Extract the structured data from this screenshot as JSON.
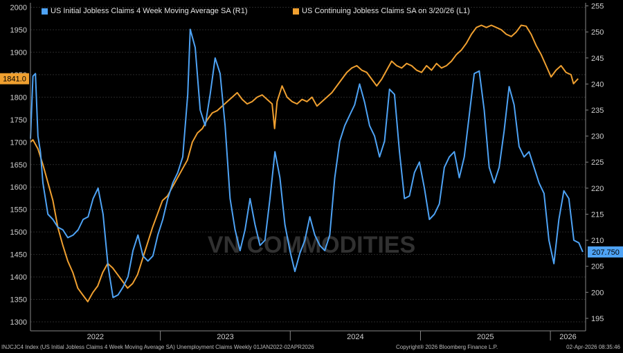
{
  "chart_data": {
    "type": "line",
    "xlabel": "",
    "x_tick_labels": [
      "2022",
      "2023",
      "2024",
      "2025",
      "2026"
    ],
    "left_axis": {
      "label": "",
      "ylim": [
        1280,
        2010
      ],
      "ticks": [
        1300,
        1350,
        1400,
        1450,
        1500,
        1550,
        1600,
        1650,
        1700,
        1750,
        1800,
        1850,
        1900,
        1950,
        2000
      ]
    },
    "right_axis": {
      "label": "",
      "ylim": [
        192.6,
        255.6
      ],
      "ticks": [
        195,
        200,
        205,
        210,
        215,
        220,
        225,
        230,
        235,
        240,
        245,
        250,
        255
      ]
    },
    "grid": true,
    "legend_position": "top-left",
    "series": [
      {
        "name": "US Initial Jobless Claims 4 Week Moving Average SA (R1)",
        "axis": "right",
        "color": "#4ea3f5",
        "last_value_label": "207.750",
        "points": [
          [
            "2022-01-01",
            229.5
          ],
          [
            "2022-01-08",
            241.5
          ],
          [
            "2022-01-15",
            242.0
          ],
          [
            "2022-01-22",
            230.0
          ],
          [
            "2022-01-29",
            227.0
          ],
          [
            "2022-02-05",
            221.0
          ],
          [
            "2022-02-12",
            218.0
          ],
          [
            "2022-02-19",
            215.0
          ],
          [
            "2022-03-05",
            214.0
          ],
          [
            "2022-03-19",
            212.5
          ],
          [
            "2022-04-02",
            212.0
          ],
          [
            "2022-04-16",
            210.5
          ],
          [
            "2022-05-01",
            211.0
          ],
          [
            "2022-05-15",
            212.0
          ],
          [
            "2022-05-29",
            214.0
          ],
          [
            "2022-06-12",
            214.5
          ],
          [
            "2022-06-26",
            218.0
          ],
          [
            "2022-07-10",
            220.0
          ],
          [
            "2022-07-24",
            215.0
          ],
          [
            "2022-08-07",
            205.0
          ],
          [
            "2022-08-21",
            199.0
          ],
          [
            "2022-09-04",
            199.5
          ],
          [
            "2022-09-18",
            201.0
          ],
          [
            "2022-10-02",
            203.0
          ],
          [
            "2022-10-16",
            208.0
          ],
          [
            "2022-10-30",
            211.0
          ],
          [
            "2022-11-13",
            207.0
          ],
          [
            "2022-11-27",
            206.0
          ],
          [
            "2022-12-11",
            207.0
          ],
          [
            "2022-12-25",
            211.0
          ],
          [
            "2023-01-08",
            214.0
          ],
          [
            "2023-01-22",
            218.0
          ],
          [
            "2023-02-05",
            221.0
          ],
          [
            "2023-02-19",
            223.0
          ],
          [
            "2023-03-05",
            226.0
          ],
          [
            "2023-03-19",
            238.0
          ],
          [
            "2023-03-26",
            250.5
          ],
          [
            "2023-04-09",
            247.0
          ],
          [
            "2023-04-23",
            235.0
          ],
          [
            "2023-05-07",
            232.0
          ],
          [
            "2023-05-21",
            238.0
          ],
          [
            "2023-06-04",
            245.0
          ],
          [
            "2023-06-18",
            242.0
          ],
          [
            "2023-07-02",
            232.0
          ],
          [
            "2023-07-16",
            218.0
          ],
          [
            "2023-07-30",
            212.0
          ],
          [
            "2023-08-13",
            208.0
          ],
          [
            "2023-08-27",
            212.0
          ],
          [
            "2023-09-10",
            218.0
          ],
          [
            "2023-09-24",
            213.0
          ],
          [
            "2023-10-08",
            209.0
          ],
          [
            "2023-10-22",
            210.0
          ],
          [
            "2023-11-05",
            218.0
          ],
          [
            "2023-11-19",
            227.0
          ],
          [
            "2023-12-03",
            222.0
          ],
          [
            "2023-12-17",
            213.0
          ],
          [
            "2023-12-31",
            208.0
          ],
          [
            "2024-01-14",
            204.0
          ],
          [
            "2024-01-28",
            207.5
          ],
          [
            "2024-02-11",
            210.0
          ],
          [
            "2024-02-25",
            214.5
          ],
          [
            "2024-03-10",
            211.0
          ],
          [
            "2024-03-24",
            209.0
          ],
          [
            "2024-04-07",
            208.0
          ],
          [
            "2024-04-21",
            211.0
          ],
          [
            "2024-05-05",
            222.0
          ],
          [
            "2024-05-19",
            229.0
          ],
          [
            "2024-06-02",
            232.0
          ],
          [
            "2024-06-16",
            234.0
          ],
          [
            "2024-06-30",
            236.0
          ],
          [
            "2024-07-14",
            240.0
          ],
          [
            "2024-07-28",
            236.5
          ],
          [
            "2024-08-11",
            232.0
          ],
          [
            "2024-08-25",
            230.0
          ],
          [
            "2024-09-08",
            226.0
          ],
          [
            "2024-09-22",
            229.0
          ],
          [
            "2024-10-06",
            239.0
          ],
          [
            "2024-10-20",
            238.0
          ],
          [
            "2024-11-03",
            227.0
          ],
          [
            "2024-11-17",
            218.0
          ],
          [
            "2024-12-01",
            218.5
          ],
          [
            "2024-12-15",
            223.0
          ],
          [
            "2024-12-29",
            225.0
          ],
          [
            "2025-01-12",
            220.0
          ],
          [
            "2025-01-26",
            214.0
          ],
          [
            "2025-02-09",
            215.0
          ],
          [
            "2025-02-23",
            217.0
          ],
          [
            "2025-03-09",
            224.0
          ],
          [
            "2025-03-23",
            226.0
          ],
          [
            "2025-04-06",
            227.0
          ],
          [
            "2025-04-20",
            222.0
          ],
          [
            "2025-05-04",
            226.0
          ],
          [
            "2025-05-18",
            234.0
          ],
          [
            "2025-06-01",
            242.0
          ],
          [
            "2025-06-15",
            242.5
          ],
          [
            "2025-06-29",
            235.0
          ],
          [
            "2025-07-13",
            224.0
          ],
          [
            "2025-07-27",
            221.0
          ],
          [
            "2025-08-10",
            224.0
          ],
          [
            "2025-08-24",
            231.0
          ],
          [
            "2025-09-07",
            239.5
          ],
          [
            "2025-09-21",
            236.0
          ],
          [
            "2025-10-05",
            228.0
          ],
          [
            "2025-10-19",
            226.0
          ],
          [
            "2025-11-02",
            227.0
          ],
          [
            "2025-11-16",
            224.0
          ],
          [
            "2025-11-30",
            221.0
          ],
          [
            "2025-12-14",
            219.0
          ],
          [
            "2025-12-28",
            210.0
          ],
          [
            "2026-01-11",
            205.5
          ],
          [
            "2026-01-25",
            214.0
          ],
          [
            "2026-02-08",
            219.5
          ],
          [
            "2026-02-22",
            218.0
          ],
          [
            "2026-03-08",
            210.0
          ],
          [
            "2026-03-22",
            209.5
          ],
          [
            "2026-04-02",
            207.75
          ]
        ]
      },
      {
        "name": "US Continuing Jobless Claims SA  on 3/20/26 (L1)",
        "axis": "left",
        "color": "#f0a030",
        "last_value_label": "1841.0",
        "points": [
          [
            "2022-01-01",
            1700
          ],
          [
            "2022-01-08",
            1705
          ],
          [
            "2022-01-22",
            1685
          ],
          [
            "2022-02-05",
            1650
          ],
          [
            "2022-02-19",
            1610
          ],
          [
            "2022-03-05",
            1570
          ],
          [
            "2022-03-19",
            1510
          ],
          [
            "2022-04-02",
            1470
          ],
          [
            "2022-04-16",
            1435
          ],
          [
            "2022-04-30",
            1410
          ],
          [
            "2022-05-14",
            1375
          ],
          [
            "2022-05-28",
            1360
          ],
          [
            "2022-06-11",
            1345
          ],
          [
            "2022-06-25",
            1365
          ],
          [
            "2022-07-09",
            1380
          ],
          [
            "2022-07-23",
            1410
          ],
          [
            "2022-08-06",
            1430
          ],
          [
            "2022-08-20",
            1420
          ],
          [
            "2022-09-03",
            1405
          ],
          [
            "2022-09-17",
            1390
          ],
          [
            "2022-10-01",
            1375
          ],
          [
            "2022-10-15",
            1385
          ],
          [
            "2022-10-29",
            1405
          ],
          [
            "2022-11-12",
            1440
          ],
          [
            "2022-11-26",
            1475
          ],
          [
            "2022-12-10",
            1510
          ],
          [
            "2022-12-24",
            1540
          ],
          [
            "2023-01-07",
            1570
          ],
          [
            "2023-01-21",
            1580
          ],
          [
            "2023-02-04",
            1600
          ],
          [
            "2023-02-18",
            1620
          ],
          [
            "2023-03-04",
            1640
          ],
          [
            "2023-03-18",
            1660
          ],
          [
            "2023-04-01",
            1700
          ],
          [
            "2023-04-15",
            1720
          ],
          [
            "2023-04-29",
            1730
          ],
          [
            "2023-05-13",
            1750
          ],
          [
            "2023-05-27",
            1765
          ],
          [
            "2023-06-10",
            1770
          ],
          [
            "2023-06-24",
            1780
          ],
          [
            "2023-07-08",
            1790
          ],
          [
            "2023-07-22",
            1800
          ],
          [
            "2023-08-05",
            1810
          ],
          [
            "2023-08-19",
            1795
          ],
          [
            "2023-09-02",
            1785
          ],
          [
            "2023-09-16",
            1790
          ],
          [
            "2023-09-30",
            1800
          ],
          [
            "2023-10-14",
            1805
          ],
          [
            "2023-10-28",
            1795
          ],
          [
            "2023-11-11",
            1785
          ],
          [
            "2023-11-18",
            1730
          ],
          [
            "2023-11-25",
            1790
          ],
          [
            "2023-12-09",
            1825
          ],
          [
            "2023-12-23",
            1800
          ],
          [
            "2024-01-06",
            1790
          ],
          [
            "2024-01-20",
            1785
          ],
          [
            "2024-02-03",
            1795
          ],
          [
            "2024-02-17",
            1790
          ],
          [
            "2024-03-02",
            1800
          ],
          [
            "2024-03-16",
            1780
          ],
          [
            "2024-03-30",
            1790
          ],
          [
            "2024-04-13",
            1800
          ],
          [
            "2024-04-27",
            1810
          ],
          [
            "2024-05-11",
            1825
          ],
          [
            "2024-05-25",
            1840
          ],
          [
            "2024-06-08",
            1855
          ],
          [
            "2024-06-22",
            1865
          ],
          [
            "2024-07-06",
            1870
          ],
          [
            "2024-07-20",
            1860
          ],
          [
            "2024-08-03",
            1855
          ],
          [
            "2024-08-17",
            1840
          ],
          [
            "2024-08-31",
            1825
          ],
          [
            "2024-09-14",
            1840
          ],
          [
            "2024-09-28",
            1860
          ],
          [
            "2024-10-12",
            1880
          ],
          [
            "2024-10-26",
            1870
          ],
          [
            "2024-11-09",
            1865
          ],
          [
            "2024-11-23",
            1875
          ],
          [
            "2024-12-07",
            1870
          ],
          [
            "2024-12-21",
            1860
          ],
          [
            "2025-01-04",
            1855
          ],
          [
            "2025-01-18",
            1870
          ],
          [
            "2025-02-01",
            1860
          ],
          [
            "2025-02-15",
            1875
          ],
          [
            "2025-03-01",
            1865
          ],
          [
            "2025-03-15",
            1870
          ],
          [
            "2025-03-29",
            1880
          ],
          [
            "2025-04-12",
            1895
          ],
          [
            "2025-04-26",
            1905
          ],
          [
            "2025-05-10",
            1920
          ],
          [
            "2025-05-24",
            1940
          ],
          [
            "2025-06-07",
            1955
          ],
          [
            "2025-06-21",
            1960
          ],
          [
            "2025-07-05",
            1955
          ],
          [
            "2025-07-19",
            1960
          ],
          [
            "2025-08-02",
            1955
          ],
          [
            "2025-08-16",
            1950
          ],
          [
            "2025-08-30",
            1940
          ],
          [
            "2025-09-13",
            1935
          ],
          [
            "2025-09-27",
            1945
          ],
          [
            "2025-10-11",
            1960
          ],
          [
            "2025-10-25",
            1958
          ],
          [
            "2025-11-08",
            1940
          ],
          [
            "2025-11-22",
            1915
          ],
          [
            "2025-12-06",
            1895
          ],
          [
            "2025-12-20",
            1870
          ],
          [
            "2026-01-03",
            1845
          ],
          [
            "2026-01-17",
            1860
          ],
          [
            "2026-01-31",
            1870
          ],
          [
            "2026-02-14",
            1855
          ],
          [
            "2026-02-28",
            1850
          ],
          [
            "2026-03-07",
            1830
          ],
          [
            "2026-03-20",
            1841
          ]
        ]
      }
    ]
  },
  "watermark": "VN COMMODITIES",
  "footer": {
    "left": "INJCJC4 Index (US Initial Jobless Claims 4 Week Moving Average SA) Unemployment Claims Weekly 01JAN2022-02APR2026",
    "middle": "Copyright® 2026 Bloomberg Finance L.P.",
    "right": "02-Apr-2026 08:35:46"
  }
}
